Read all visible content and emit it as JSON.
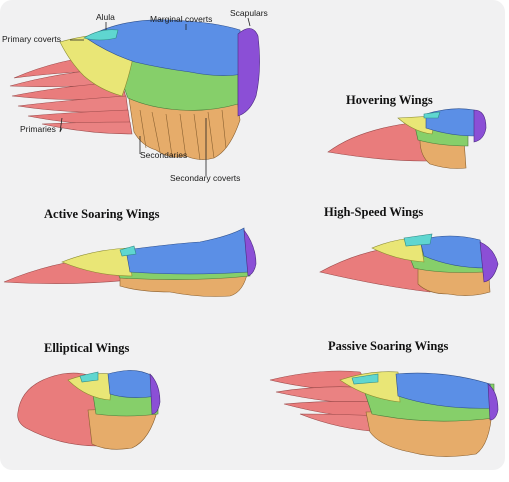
{
  "anatomy_labels": {
    "alula": "Alula",
    "marginal_coverts": "Marginal coverts",
    "scapulars": "Scapulars",
    "primary_coverts": "Primary coverts",
    "primaries": "Primaries",
    "secondaries": "Secondaries",
    "secondary_coverts": "Secondary coverts"
  },
  "wing_types": {
    "hovering": "Hovering Wings",
    "active_soaring": "Active Soaring Wings",
    "high_speed": "High-Speed Wings",
    "elliptical": "Elliptical Wings",
    "passive_soaring": "Passive Soaring Wings"
  },
  "colors": {
    "primaries": "#e97c7c",
    "secondaries": "#e6ac6a",
    "secondary_coverts": "#86cf6a",
    "primary_coverts": "#e9e676",
    "marginal_coverts": "#5b8fe6",
    "alula": "#5fd6d0",
    "scapulars": "#8b4fd6",
    "outline": "#7a5a3a",
    "background": "#f1f1f2"
  }
}
